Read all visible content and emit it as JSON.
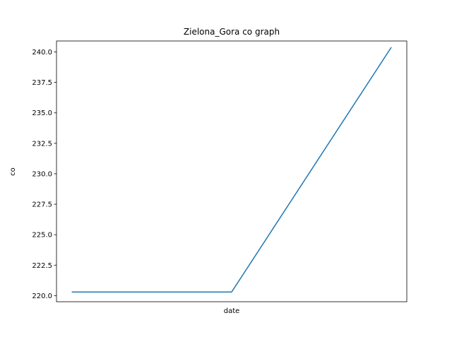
{
  "chart_data": {
    "type": "line",
    "title": "Zielona_Gora co graph",
    "xlabel": "date",
    "ylabel": "co",
    "x": [
      "",
      "",
      ""
    ],
    "series": [
      {
        "values": [
          220.3,
          220.3,
          240.35
        ],
        "color": "#1f77b4"
      }
    ],
    "ylim": [
      219.5,
      240.9
    ],
    "yticks": [
      220.0,
      222.5,
      225.0,
      227.5,
      230.0,
      232.5,
      235.0,
      237.5,
      240.0
    ],
    "ytick_labels": [
      "220.0",
      "222.5",
      "225.0",
      "227.5",
      "230.0",
      "232.5",
      "235.0",
      "237.5",
      "240.0"
    ],
    "grid": false,
    "legend": "none"
  }
}
